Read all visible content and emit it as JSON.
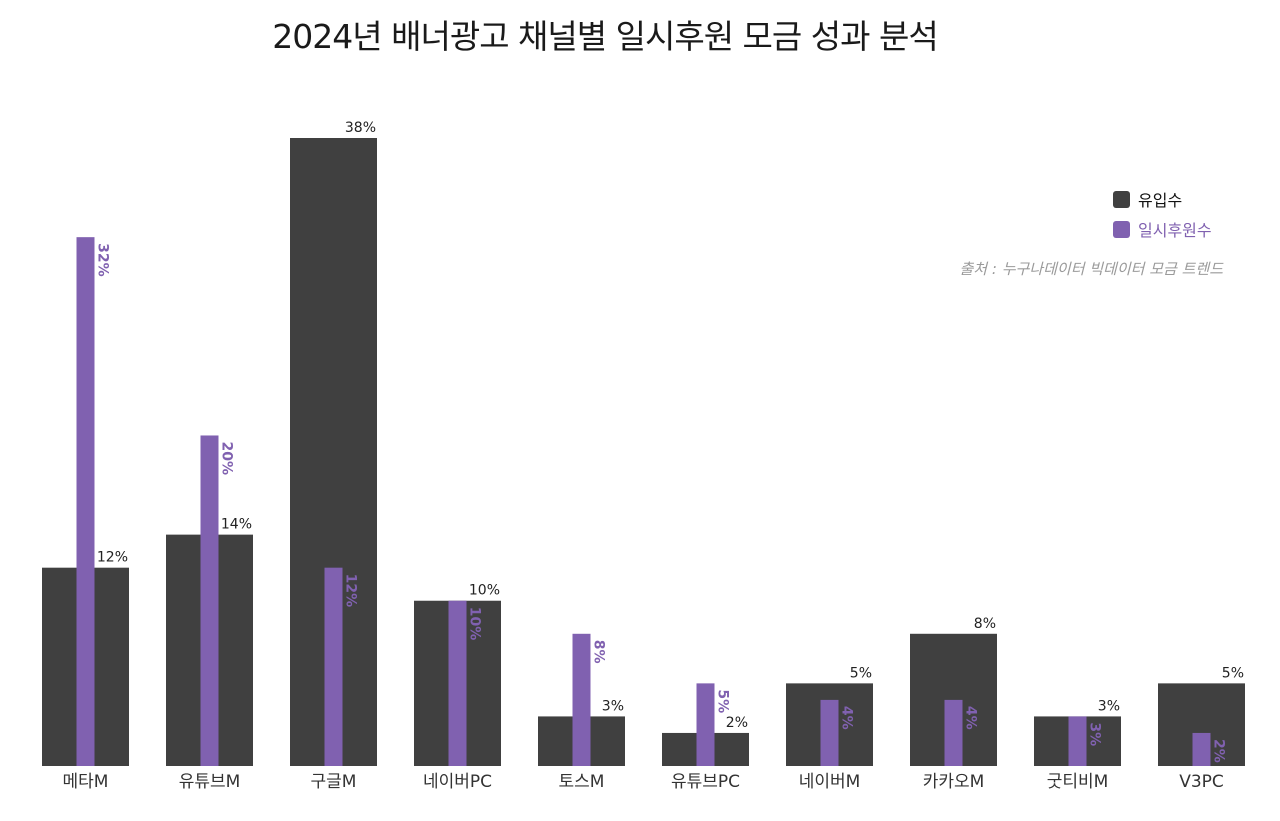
{
  "title": "2024년 배너광고 채널별 일시후원 모금 성과 분석",
  "source": "출처 : 누구나데이터 빅데이터 모금 트렌드",
  "colors": {
    "inflow": "#404040",
    "donors": "#8061b0",
    "label_dark": "#222222",
    "label_purple": "#8061b0",
    "source": "#9a9a9a"
  },
  "legend": [
    {
      "name": "유입수",
      "color": "#404040",
      "text_color": "#111111"
    },
    {
      "name": "일시후원수",
      "color": "#8061b0",
      "text_color": "#8061b0"
    }
  ],
  "chart_data": {
    "type": "bar",
    "title": "2024년 배너광고 채널별 일시후원 모금 성과 분석",
    "categories": [
      "메타M",
      "유튜브M",
      "구글M",
      "네이버PC",
      "토스M",
      "유튜브PC",
      "네이버M",
      "카카오M",
      "굿티비M",
      "V3PC"
    ],
    "series": [
      {
        "name": "유입수",
        "values": [
          12,
          14,
          38,
          10,
          3,
          2,
          5,
          8,
          3,
          5
        ],
        "labels": [
          "12%",
          "14%",
          "38%",
          "10%",
          "3%",
          "2%",
          "5%",
          "8%",
          "3%",
          "5%"
        ]
      },
      {
        "name": "일시후원수",
        "values": [
          32,
          20,
          12,
          10,
          8,
          5,
          4,
          4,
          3,
          2
        ],
        "labels": [
          "32%",
          "20%",
          "12%",
          "10%",
          "8%",
          "5%",
          "4%",
          "4%",
          "3%",
          "2%"
        ]
      }
    ],
    "ylim": [
      0,
      38
    ],
    "grid": false,
    "legend_position": "top-right",
    "unit": "%"
  }
}
